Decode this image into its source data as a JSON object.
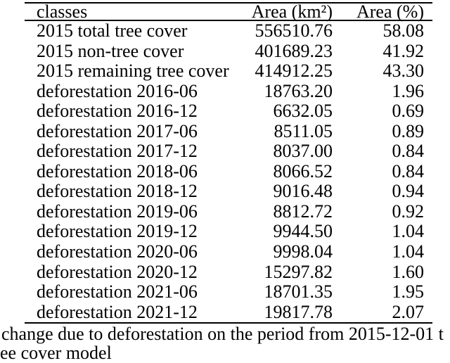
{
  "colors": {
    "text": "#000000",
    "background": "#ffffff",
    "rule": "#000000"
  },
  "table": {
    "headers": [
      "classes",
      "Area (km²)",
      "Area (%)"
    ],
    "rows": [
      {
        "label": "2015 total tree cover",
        "km2": "556510.76",
        "pct": "58.08"
      },
      {
        "label": "2015 non-tree cover",
        "km2": "401689.23",
        "pct": "41.92"
      },
      {
        "label": "2015 remaining tree cover",
        "km2": "414912.25",
        "pct": "43.30"
      },
      {
        "label": "deforestation 2016-06",
        "km2": "18763.20",
        "pct": "1.96"
      },
      {
        "label": "deforestation 2016-12",
        "km2": "6632.05",
        "pct": "0.69"
      },
      {
        "label": "deforestation 2017-06",
        "km2": "8511.05",
        "pct": "0.89"
      },
      {
        "label": "deforestation 2017-12",
        "km2": "8037.00",
        "pct": "0.84"
      },
      {
        "label": "deforestation 2018-06",
        "km2": "8066.52",
        "pct": "0.84"
      },
      {
        "label": "deforestation 2018-12",
        "km2": "9016.48",
        "pct": "0.94"
      },
      {
        "label": "deforestation 2019-06",
        "km2": "8812.72",
        "pct": "0.92"
      },
      {
        "label": "deforestation 2019-12",
        "km2": "9944.50",
        "pct": "1.04"
      },
      {
        "label": "deforestation 2020-06",
        "km2": "9998.04",
        "pct": "1.04"
      },
      {
        "label": "deforestation 2020-12",
        "km2": "15297.82",
        "pct": "1.60"
      },
      {
        "label": "deforestation 2021-06",
        "km2": "18701.35",
        "pct": "1.95"
      },
      {
        "label": "deforestation 2021-12",
        "km2": "19817.78",
        "pct": "2.07"
      }
    ]
  },
  "caption": {
    "line1": "change due to deforestation on the period from 2015-12-01 t",
    "line2": "ee cover model"
  }
}
